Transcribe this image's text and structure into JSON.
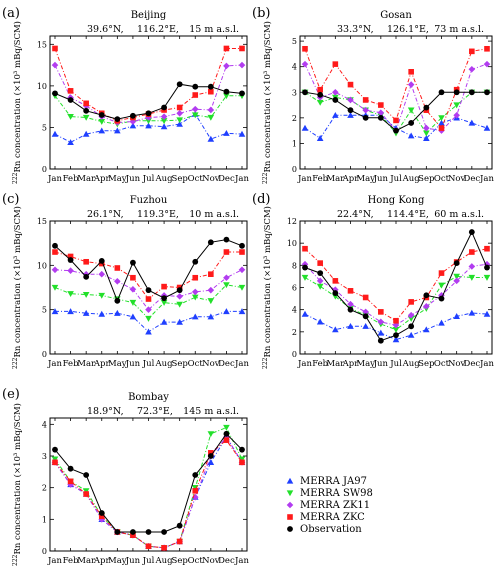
{
  "months": [
    "Jan",
    "Feb",
    "Mar",
    "Apr",
    "May",
    "Jun",
    "Jul",
    "Aug",
    "Sep",
    "Oct",
    "Nov",
    "Dec",
    "Jan"
  ],
  "ylabel": "Rn concentration (×10³ mBq/SCM)",
  "ylabel_sup": "222",
  "legend": [
    {
      "name": "MERRA JA97",
      "color": "#1f3fff",
      "marker": "tri-up"
    },
    {
      "name": "MERRA SW98",
      "color": "#22e02a",
      "marker": "tri-down"
    },
    {
      "name": "MERRA ZK11",
      "color": "#b23cf0",
      "marker": "diamond"
    },
    {
      "name": "MERRA ZKC",
      "color": "#ff1a1a",
      "marker": "square"
    },
    {
      "name": "Observation",
      "color": "#000000",
      "marker": "circle"
    }
  ],
  "chart_data": [
    {
      "type": "line",
      "tag": "(a)",
      "title": "Beijing",
      "lat": "39.6°N,",
      "lon": "116.2°E,",
      "alt": "15 m a.s.l.",
      "ylim": [
        0,
        16
      ],
      "yticks": [
        0,
        5,
        10,
        15
      ],
      "series": [
        {
          "name": "MERRA JA97",
          "values": [
            4.2,
            3.2,
            4.2,
            4.6,
            4.6,
            5.2,
            5.2,
            5.1,
            5.4,
            6.6,
            3.6,
            4.3,
            4.2
          ]
        },
        {
          "name": "MERRA SW98",
          "values": [
            8.8,
            6.3,
            6.2,
            5.7,
            5.4,
            5.8,
            5.8,
            5.8,
            5.9,
            6.5,
            6.2,
            8.8,
            8.8
          ]
        },
        {
          "name": "MERRA ZK11",
          "values": [
            12.5,
            8.6,
            7.6,
            6.3,
            5.6,
            5.7,
            6.2,
            6.3,
            6.7,
            7.2,
            7.1,
            12.4,
            12.5
          ]
        },
        {
          "name": "MERRA ZKC",
          "values": [
            14.5,
            9.4,
            7.9,
            6.7,
            5.8,
            6.2,
            6.6,
            7.1,
            7.4,
            8.9,
            9.3,
            14.5,
            14.5
          ]
        },
        {
          "name": "Observation",
          "values": [
            9.1,
            8.3,
            7.0,
            6.5,
            6.0,
            6.4,
            6.7,
            7.4,
            10.2,
            9.9,
            9.9,
            9.3,
            9.1
          ]
        }
      ]
    },
    {
      "type": "line",
      "tag": "(b)",
      "title": "Gosan",
      "lat": "33.3°N,",
      "lon": "126.1°E,",
      "alt": "73 m a.s.l.",
      "ylim": [
        0,
        5.2
      ],
      "yticks": [
        0,
        1,
        2,
        3,
        4,
        5
      ],
      "series": [
        {
          "name": "MERRA JA97",
          "values": [
            1.6,
            1.2,
            2.1,
            2.1,
            2.1,
            2.1,
            1.6,
            1.3,
            1.2,
            1.8,
            2.0,
            1.8,
            1.6
          ]
        },
        {
          "name": "MERRA SW98",
          "values": [
            3.0,
            2.6,
            2.8,
            2.7,
            2.3,
            2.1,
            1.4,
            2.3,
            1.4,
            2.0,
            2.5,
            3.0,
            3.0
          ]
        },
        {
          "name": "MERRA ZK11",
          "values": [
            4.1,
            2.8,
            3.0,
            2.7,
            2.3,
            2.2,
            1.5,
            3.3,
            1.6,
            1.5,
            2.1,
            3.9,
            4.1
          ]
        },
        {
          "name": "MERRA ZKC",
          "values": [
            4.7,
            3.1,
            4.1,
            3.3,
            2.7,
            2.5,
            1.9,
            3.8,
            2.3,
            1.6,
            3.1,
            4.6,
            4.7
          ]
        },
        {
          "name": "Observation",
          "values": [
            3.0,
            2.9,
            2.7,
            2.3,
            2.0,
            2.0,
            1.5,
            1.8,
            2.4,
            3.0,
            3.0,
            3.0,
            3.0
          ]
        }
      ]
    },
    {
      "type": "line",
      "tag": "(c)",
      "title": "Fuzhou",
      "lat": "26.1°N,",
      "lon": "119.3°E,",
      "alt": "10 m a.s.l.",
      "ylim": [
        0,
        15
      ],
      "yticks": [
        0,
        5,
        10,
        15
      ],
      "series": [
        {
          "name": "MERRA JA97",
          "values": [
            4.8,
            4.8,
            4.6,
            4.5,
            4.6,
            4.2,
            2.5,
            3.6,
            3.6,
            4.2,
            4.2,
            4.8,
            4.8
          ]
        },
        {
          "name": "MERRA SW98",
          "values": [
            7.5,
            6.8,
            6.7,
            6.6,
            6.2,
            5.8,
            4.0,
            5.8,
            5.6,
            6.4,
            6.0,
            7.8,
            7.5
          ]
        },
        {
          "name": "MERRA ZK11",
          "values": [
            9.5,
            9.4,
            9.0,
            9.0,
            8.2,
            7.3,
            5.0,
            6.6,
            6.5,
            7.0,
            7.2,
            8.6,
            9.5
          ]
        },
        {
          "name": "MERRA ZKC",
          "values": [
            11.5,
            11.0,
            10.4,
            10.2,
            9.7,
            8.6,
            6.2,
            7.6,
            7.5,
            8.6,
            9.0,
            11.5,
            11.5
          ]
        },
        {
          "name": "Observation",
          "values": [
            12.2,
            10.6,
            8.7,
            10.5,
            6.0,
            10.3,
            7.2,
            6.3,
            7.2,
            10.4,
            12.6,
            12.9,
            12.2
          ]
        }
      ]
    },
    {
      "type": "line",
      "tag": "(d)",
      "title": "Hong Kong",
      "lat": "22.4°N,",
      "lon": "114.4°E,",
      "alt": "60 m a.s.l.",
      "ylim": [
        0,
        12
      ],
      "yticks": [
        0,
        2,
        4,
        6,
        8,
        10,
        12
      ],
      "series": [
        {
          "name": "MERRA JA97",
          "values": [
            3.6,
            2.9,
            2.2,
            2.5,
            2.5,
            1.9,
            1.3,
            1.7,
            2.2,
            2.8,
            3.4,
            3.7,
            3.6
          ]
        },
        {
          "name": "MERRA SW98",
          "values": [
            6.9,
            6.1,
            5.2,
            4.1,
            3.5,
            2.7,
            2.2,
            3.2,
            4.1,
            6.2,
            7.0,
            6.9,
            6.9
          ]
        },
        {
          "name": "MERRA ZK11",
          "values": [
            8.1,
            6.6,
            5.8,
            4.5,
            3.8,
            2.9,
            2.6,
            3.5,
            4.3,
            5.3,
            6.6,
            7.9,
            8.1
          ]
        },
        {
          "name": "MERRA ZKC",
          "values": [
            9.5,
            8.2,
            6.6,
            5.7,
            5.1,
            3.8,
            3.0,
            4.7,
            5.1,
            7.3,
            8.3,
            9.2,
            9.5
          ]
        },
        {
          "name": "Observation",
          "values": [
            7.8,
            7.3,
            5.5,
            4.0,
            3.4,
            1.2,
            1.7,
            2.5,
            5.3,
            5.0,
            8.2,
            11.0,
            7.8
          ]
        }
      ]
    },
    {
      "type": "line",
      "tag": "(e)",
      "title": "Bombay",
      "lat": "18.9°N,",
      "lon": "72.3°E,",
      "alt": "145 m a.s.l.",
      "ylim": [
        0,
        4.2
      ],
      "yticks": [
        0,
        1,
        2,
        3,
        4
      ],
      "series": [
        {
          "name": "MERRA JA97",
          "values": [
            2.8,
            2.1,
            1.8,
            1.0,
            0.6,
            0.5,
            0.15,
            0.1,
            0.3,
            1.7,
            2.8,
            3.6,
            2.8
          ]
        },
        {
          "name": "MERRA SW98",
          "values": [
            2.9,
            2.2,
            1.9,
            1.1,
            0.6,
            0.5,
            0.15,
            0.1,
            0.3,
            2.0,
            3.7,
            3.9,
            2.9
          ]
        },
        {
          "name": "MERRA ZK11",
          "values": [
            2.8,
            2.1,
            1.8,
            1.0,
            0.6,
            0.5,
            0.15,
            0.1,
            0.3,
            1.7,
            3.0,
            3.6,
            2.8
          ]
        },
        {
          "name": "MERRA ZKC",
          "values": [
            2.8,
            2.2,
            1.8,
            1.1,
            0.6,
            0.5,
            0.15,
            0.1,
            0.3,
            1.9,
            3.1,
            3.5,
            2.8
          ]
        },
        {
          "name": "Observation",
          "values": [
            3.2,
            2.6,
            2.4,
            1.2,
            0.6,
            0.6,
            0.6,
            0.6,
            0.8,
            2.4,
            3.0,
            3.7,
            3.2
          ]
        }
      ]
    }
  ]
}
